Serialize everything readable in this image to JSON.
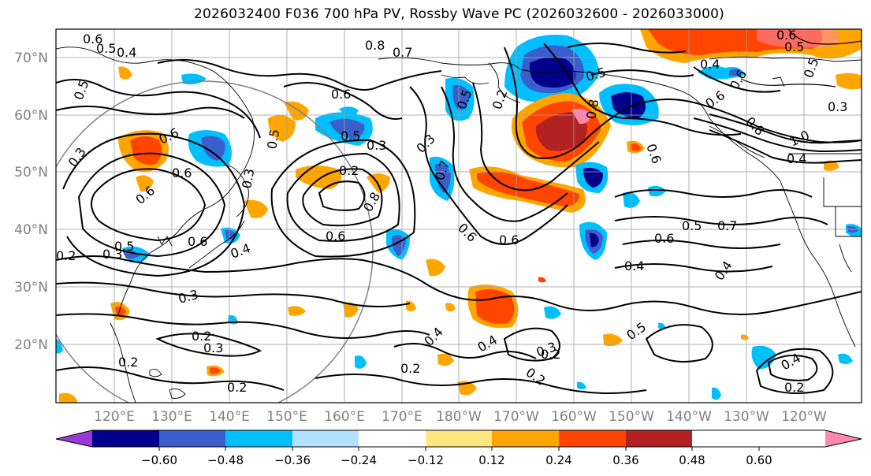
{
  "title": "2026032400 F036 700 hPa PV, Rossby Wave PC (2026032600 - 2026033000)",
  "latitude_labels": [
    "70°N",
    "60°N",
    "50°N",
    "40°N",
    "30°N",
    "20°N"
  ],
  "longitude_labels": [
    "120°E",
    "130°E",
    "140°E",
    "150°E",
    "160°E",
    "170°E",
    "180°W",
    "170°W",
    "160°W",
    "150°W",
    "140°W",
    "130°W",
    "120°W"
  ],
  "colorbar": {
    "ticks": [
      "−0.60",
      "−0.48",
      "−0.36",
      "−0.24",
      "−0.12",
      "0.12",
      "0.24",
      "0.36",
      "0.48",
      "0.60"
    ],
    "colors": [
      "#9a3ad6",
      "#00008b",
      "#3a5fcd",
      "#00bfff",
      "#b0e2ff",
      "#ffffff",
      "#ffe680",
      "#ffa500",
      "#ff4500",
      "#b22222",
      "#ff88b0"
    ]
  },
  "contour_labels": [
    "0.6",
    "0.5",
    "0.4",
    "0.5",
    "0.6",
    "0.3",
    "0.2",
    "0.6",
    "0.5",
    "0.3",
    "0.6",
    "0.4",
    "0.3",
    "0.5",
    "0.8",
    "0.7",
    "0.6",
    "0.5",
    "0.2",
    "0.3",
    "0.3",
    "0.6",
    "0.8",
    "0.6",
    "0.5",
    "0.7",
    "0.6",
    "0.3",
    "0.4",
    "0.2",
    "0.5",
    "0.4",
    "0.2",
    "0.3",
    "0.2",
    "0.2",
    "0.2",
    "0.4",
    "0.2",
    "0.3",
    "0.2",
    "0.5",
    "0.4",
    "0.2",
    "0.6",
    "0.5",
    "0.6",
    "0.7",
    "0.8",
    "0.6",
    "1.0",
    "0.5",
    "0.4",
    "0.3",
    "0.4",
    "0.6",
    "0.5",
    "0.6",
    "0.8",
    "0.6",
    "0.4"
  ]
}
